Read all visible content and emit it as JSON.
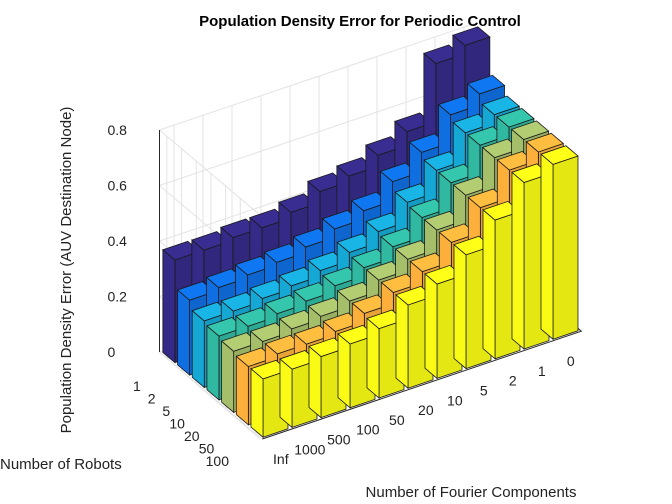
{
  "chart_data": {
    "type": "bar3",
    "title": "Population Density Error for Periodic Control",
    "xlabel": "Number of Robots",
    "ylabel": "Number of Fourier Components",
    "zlabel": "Population Density Error (AUV Destination Node)",
    "x_categories": [
      "1",
      "2",
      "5",
      "10",
      "20",
      "50",
      "100"
    ],
    "y_categories": [
      "Inf",
      "1000",
      "500",
      "100",
      "50",
      "20",
      "10",
      "5",
      "2",
      "1",
      "0"
    ],
    "zlim": [
      0,
      0.8
    ],
    "zticks": [
      "0",
      "0.2",
      "0.4",
      "0.6",
      "0.8"
    ],
    "grid": true,
    "series": [
      {
        "values": [
          0.37,
          0.37,
          0.38,
          0.38,
          0.4,
          0.44,
          0.46,
          0.5,
          0.55,
          0.76,
          0.79
        ]
      },
      {
        "values": [
          0.27,
          0.28,
          0.29,
          0.3,
          0.32,
          0.35,
          0.38,
          0.45,
          0.52,
          0.62,
          0.66
        ]
      },
      {
        "values": [
          0.24,
          0.24,
          0.25,
          0.26,
          0.28,
          0.31,
          0.35,
          0.42,
          0.5,
          0.6,
          0.63
        ]
      },
      {
        "values": [
          0.23,
          0.23,
          0.24,
          0.25,
          0.27,
          0.3,
          0.34,
          0.41,
          0.5,
          0.6,
          0.63
        ]
      },
      {
        "values": [
          0.22,
          0.22,
          0.23,
          0.24,
          0.26,
          0.3,
          0.34,
          0.41,
          0.5,
          0.6,
          0.63
        ]
      },
      {
        "values": [
          0.21,
          0.22,
          0.22,
          0.23,
          0.26,
          0.3,
          0.34,
          0.41,
          0.5,
          0.6,
          0.63
        ]
      },
      {
        "values": [
          0.21,
          0.21,
          0.22,
          0.23,
          0.25,
          0.3,
          0.34,
          0.41,
          0.5,
          0.6,
          0.63
        ]
      }
    ],
    "colors": [
      "#352a87",
      "#0f6ee0",
      "#16a8d5",
      "#31b8a0",
      "#a5be6a",
      "#fcb03b",
      "#f9fb15"
    ]
  }
}
